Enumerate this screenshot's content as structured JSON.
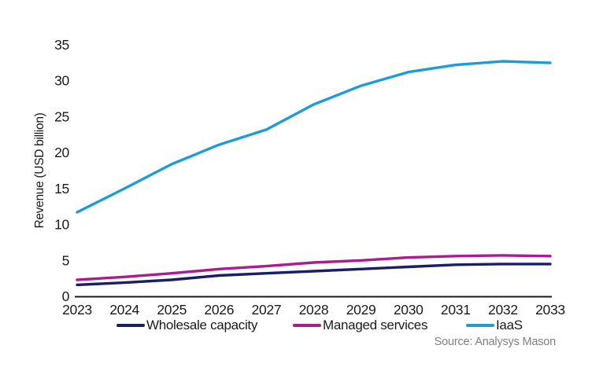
{
  "chart_data": {
    "type": "line",
    "x": [
      2023,
      2024,
      2025,
      2026,
      2027,
      2028,
      2029,
      2030,
      2031,
      2032,
      2033
    ],
    "series": [
      {
        "name": "Wholesale capacity",
        "color": "#191f63",
        "values": [
          1.6,
          1.9,
          2.3,
          2.9,
          3.2,
          3.5,
          3.8,
          4.1,
          4.4,
          4.5,
          4.5
        ]
      },
      {
        "name": "Managed services",
        "color": "#a91e8c",
        "values": [
          2.3,
          2.7,
          3.2,
          3.8,
          4.2,
          4.7,
          5.0,
          5.4,
          5.6,
          5.7,
          5.6
        ]
      },
      {
        "name": "IaaS",
        "color": "#1f9bd7",
        "values": [
          11.7,
          15.0,
          18.4,
          21.1,
          23.2,
          26.7,
          29.3,
          31.2,
          32.2,
          32.7,
          32.5
        ]
      }
    ],
    "title": "",
    "xlabel": "",
    "ylabel": "Revenue (USD billion)",
    "ylim": [
      0,
      35
    ],
    "ytick_step": 5,
    "grid": false,
    "legend_position": "bottom",
    "source": "Source: Analysys Mason"
  },
  "colors": {
    "axis": "#1a1a1a",
    "tick_text": "#1a1a1a",
    "source_text": "#7f7f7f",
    "background": "#ffffff"
  }
}
